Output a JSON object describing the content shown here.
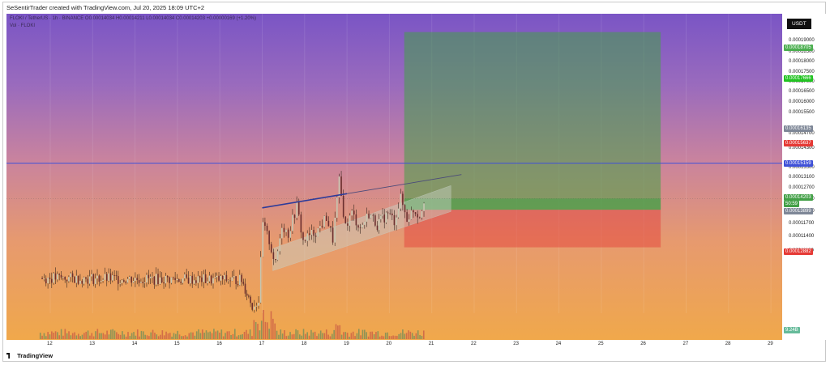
{
  "header": {
    "attribution": "SeSentirTrader created with TradingView.com, Jul 20, 2025 18:09 UTC+2"
  },
  "legend": {
    "symbol_line": "FLOKI / TetherUS · 1h · BINANCE  O0.00014034  H0.00014211  L0.00014034  C0.00014203  +0.00000169 (+1.20%)",
    "volume_line": "Vol · FLOKI"
  },
  "price_scale": {
    "currency": "USDT",
    "ticks": [
      "0.00019000",
      "0.00018500",
      "0.00018000",
      "0.00017500",
      "0.00017000",
      "0.00016500",
      "0.00016000",
      "0.00015500",
      "0.00014700",
      "0.00014300",
      "0.00013500",
      "0.00013100",
      "0.00012700",
      "0.00012300",
      "0.00012000",
      "0.00011700",
      "0.00011400",
      "0.00011120"
    ],
    "tags": [
      {
        "text": "0.00018705",
        "color": "#4caf50"
      },
      {
        "text": "0.00017666",
        "color": "#22c322"
      },
      {
        "text": "0.00016135",
        "color": "#7e8797"
      },
      {
        "text": "0.00015637",
        "color": "#e53935"
      },
      {
        "text": "0.00015159",
        "color": "#3f51d8"
      },
      {
        "text": "0.00014203",
        "color": "#43a047"
      },
      {
        "text": "50:59",
        "color": "#43a047"
      },
      {
        "text": "0.00013899",
        "color": "#7e8797"
      },
      {
        "text": "0.00012882",
        "color": "#e53935"
      },
      {
        "text": "9.24B",
        "color": "#66bb9a"
      }
    ]
  },
  "time_scale": {
    "labels": [
      "12",
      "13",
      "14",
      "15",
      "16",
      "17",
      "18",
      "19",
      "20",
      "21",
      "22",
      "23",
      "24",
      "25",
      "26",
      "27",
      "28",
      "29"
    ]
  },
  "footer": {
    "brand": "TradingView"
  },
  "chart_data": {
    "type": "candlestick",
    "symbol": "FLOKI / TetherUS",
    "interval": "1h",
    "exchange": "BINANCE",
    "last_bar": {
      "open": 0.00014034,
      "high": 0.00014211,
      "low": 0.00014034,
      "close": 0.00014203,
      "change": 1.69e-06,
      "change_pct": 1.2
    },
    "x_axis": [
      "12",
      "13",
      "14",
      "15",
      "16",
      "17",
      "18",
      "19",
      "20",
      "21",
      "22",
      "23",
      "24",
      "25",
      "26",
      "27",
      "28",
      "29"
    ],
    "y_range": [
      0.000111,
      0.000192
    ],
    "horizontal_line": 0.00015159,
    "current_price_line": 0.00014203,
    "trendline_upper": {
      "start": {
        "day": 17.0,
        "price": 0.0001395
      },
      "end": {
        "day": 21.7,
        "price": 0.0001485
      }
    },
    "wedge_lower": {
      "start": {
        "day": 17.25,
        "price": 0.0001225
      },
      "end": {
        "day": 21.45,
        "price": 0.0001385
      }
    },
    "long_position": {
      "entry": 0.00013899,
      "target": 0.00018705,
      "stop": 0.00012882,
      "start_day": 20.35,
      "end_day": 26.4
    },
    "price_path": [
      {
        "day": 11.75,
        "price": 0.0001205
      },
      {
        "day": 16.5,
        "price": 0.00012
      },
      {
        "day": 16.75,
        "price": 0.000113
      },
      {
        "day": 16.9,
        "price": 0.0001145
      },
      {
        "day": 17.0,
        "price": 0.000135
      },
      {
        "day": 17.15,
        "price": 0.0001305
      },
      {
        "day": 17.3,
        "price": 0.000124
      },
      {
        "day": 17.45,
        "price": 0.000135
      },
      {
        "day": 17.6,
        "price": 0.0001325
      },
      {
        "day": 17.8,
        "price": 0.00014
      },
      {
        "day": 17.95,
        "price": 0.0001305
      },
      {
        "day": 18.1,
        "price": 0.000132
      },
      {
        "day": 18.3,
        "price": 0.0001335
      },
      {
        "day": 18.5,
        "price": 0.000137
      },
      {
        "day": 18.65,
        "price": 0.000131
      },
      {
        "day": 18.8,
        "price": 0.0001465
      },
      {
        "day": 18.95,
        "price": 0.0001345
      },
      {
        "day": 19.1,
        "price": 0.000138
      },
      {
        "day": 19.3,
        "price": 0.000134
      },
      {
        "day": 19.5,
        "price": 0.000138
      },
      {
        "day": 19.7,
        "price": 0.000135
      },
      {
        "day": 19.95,
        "price": 0.000138
      },
      {
        "day": 20.1,
        "price": 0.000136
      },
      {
        "day": 20.25,
        "price": 0.000142
      },
      {
        "day": 20.4,
        "price": 0.0001365
      },
      {
        "day": 20.55,
        "price": 0.000139
      },
      {
        "day": 20.7,
        "price": 0.0001375
      },
      {
        "day": 20.8,
        "price": 0.00014203
      }
    ]
  }
}
